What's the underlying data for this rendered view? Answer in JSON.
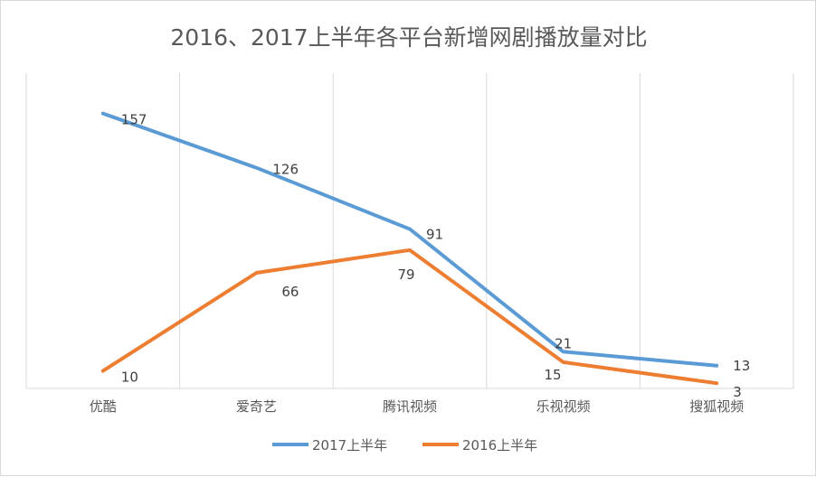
{
  "chart_data": {
    "type": "line",
    "title": "2016、2017上半年各平台新增网剧播放量对比",
    "categories": [
      "优酷",
      "爱奇艺",
      "腾讯视频",
      "乐视视频",
      "搜狐视频"
    ],
    "series": [
      {
        "name": "2017上半年",
        "values": [
          157,
          126,
          91,
          21,
          13
        ],
        "color": "#5B9BD5"
      },
      {
        "name": "2016上半年",
        "values": [
          10,
          66,
          79,
          15,
          3
        ],
        "color": "#ED7D31"
      }
    ],
    "ylim": [
      0,
      180
    ],
    "grid": "vertical",
    "legend": "bottom",
    "data_labels": true
  }
}
